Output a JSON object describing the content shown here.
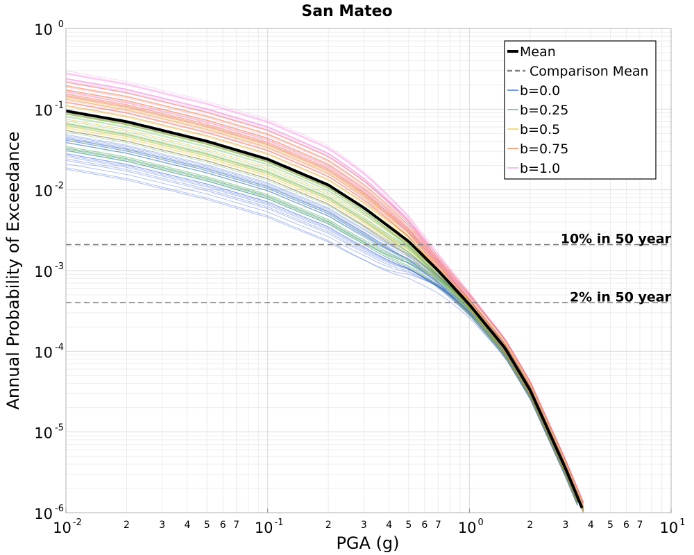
{
  "chart_data": {
    "type": "line",
    "title": "San Mateo",
    "xlabel": "PGA (g)",
    "ylabel": "Annual Probability of Exceedance",
    "xscale": "log",
    "yscale": "log",
    "xlim": [
      0.01,
      10
    ],
    "ylim": [
      1e-06,
      1
    ],
    "grid": true,
    "legend_position": "top-right",
    "x_major_ticks": [
      {
        "base": "10",
        "exp": "-2"
      },
      {
        "base": "10",
        "exp": "-1"
      },
      {
        "base": "10",
        "exp": "0"
      },
      {
        "base": "10",
        "exp": "1"
      }
    ],
    "y_major_ticks": [
      {
        "base": "10",
        "exp": "-6"
      },
      {
        "base": "10",
        "exp": "-5"
      },
      {
        "base": "10",
        "exp": "-4"
      },
      {
        "base": "10",
        "exp": "-3"
      },
      {
        "base": "10",
        "exp": "-2"
      },
      {
        "base": "10",
        "exp": "-1"
      },
      {
        "base": "10",
        "exp": "0"
      }
    ],
    "x_minor_tick_labels": [
      "2",
      "3",
      "4",
      "5",
      "6",
      "7"
    ],
    "series": [
      {
        "name": "Mean",
        "color": "#000000",
        "style": "solid",
        "x": [
          0.01,
          0.02,
          0.05,
          0.1,
          0.2,
          0.3,
          0.5,
          0.7,
          1.0,
          1.5,
          2.0,
          3.0,
          3.7
        ],
        "y": [
          0.095,
          0.07,
          0.04,
          0.024,
          0.0115,
          0.006,
          0.0023,
          0.001,
          0.00038,
          0.00011,
          3.3e-05,
          3.5e-06,
          1e-06
        ]
      },
      {
        "name": "Comparison Mean",
        "color": "#808080",
        "style": "dashed",
        "x": [
          0.01,
          0.02,
          0.05,
          0.1,
          0.2,
          0.3,
          0.5,
          0.7,
          1.0,
          1.5,
          2.0,
          3.0,
          3.7
        ],
        "y": [
          0.095,
          0.07,
          0.04,
          0.024,
          0.0115,
          0.006,
          0.0023,
          0.001,
          0.00038,
          0.00011,
          3.3e-05,
          3.5e-06,
          1e-06
        ]
      },
      {
        "name": "b=0.0",
        "color": "#1f4fd8",
        "style": "thin-bundle",
        "y_at_0_01_range": [
          0.018,
          0.06
        ]
      },
      {
        "name": "b=0.25",
        "color": "#3fae49",
        "style": "thin-bundle",
        "y_at_0_01_range": [
          0.03,
          0.1
        ]
      },
      {
        "name": "b=0.5",
        "color": "#e8c42a",
        "style": "thin-bundle",
        "y_at_0_01_range": [
          0.05,
          0.15
        ]
      },
      {
        "name": "b=0.75",
        "color": "#ef6a2c",
        "style": "thin-bundle",
        "y_at_0_01_range": [
          0.08,
          0.22
        ]
      },
      {
        "name": "b=1.0",
        "color": "#f58ce0",
        "style": "thin-bundle",
        "y_at_0_01_range": [
          0.12,
          0.3
        ]
      }
    ],
    "hlines": [
      {
        "label": "10% in 50 year",
        "y": 0.0021,
        "color": "#808080",
        "style": "dashed"
      },
      {
        "label": "2% in 50 year",
        "y": 0.0004,
        "color": "#808080",
        "style": "dashed"
      }
    ]
  }
}
